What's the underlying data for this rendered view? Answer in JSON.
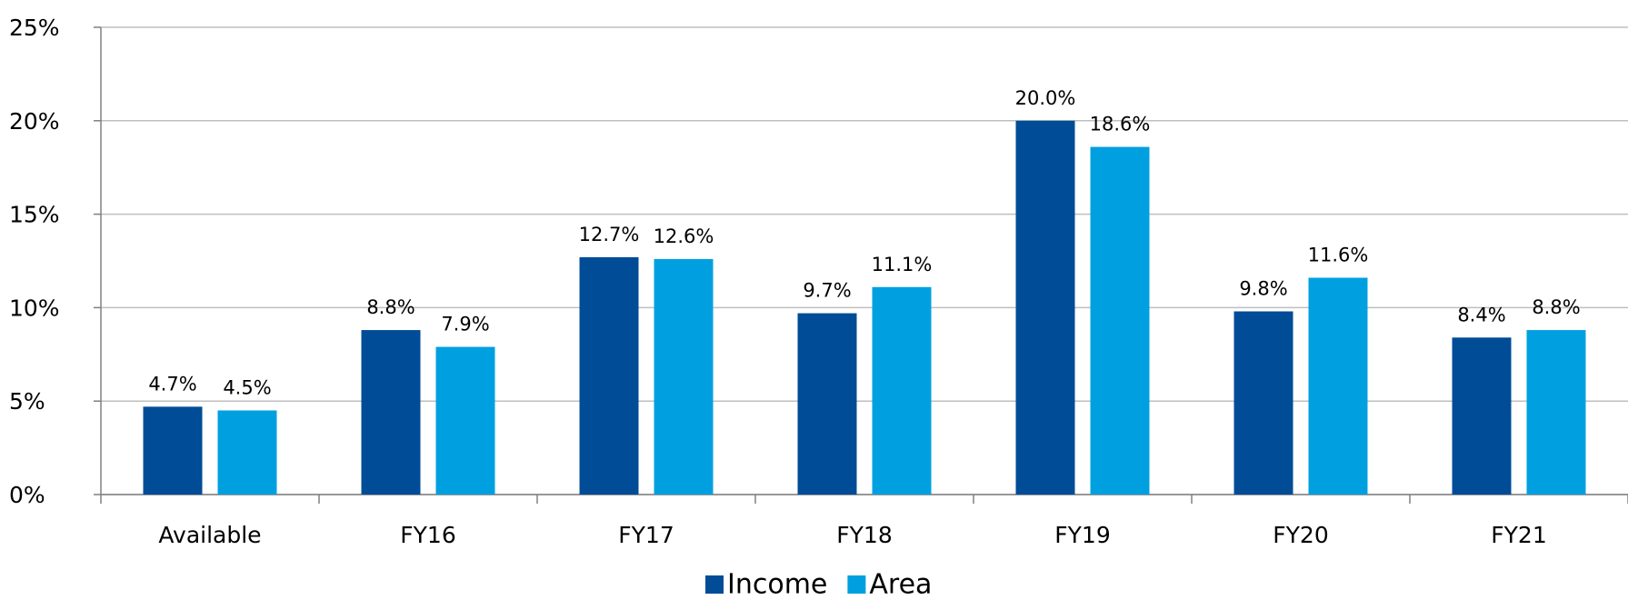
{
  "chart_data": {
    "type": "bar",
    "categories": [
      "Available",
      "FY16",
      "FY17",
      "FY18",
      "FY19",
      "FY20",
      "FY21"
    ],
    "series": [
      {
        "name": "Income",
        "color": "#004c97",
        "values": [
          4.7,
          8.8,
          12.7,
          9.7,
          20.0,
          9.8,
          8.4
        ],
        "value_labels": [
          "4.7%",
          "8.8%",
          "12.7%",
          "9.7%",
          "20.0%",
          "9.8%",
          "8.4%"
        ]
      },
      {
        "name": "Area",
        "color": "#00a0e0",
        "values": [
          4.5,
          7.9,
          12.6,
          11.1,
          18.6,
          11.6,
          8.8
        ],
        "value_labels": [
          "4.5%",
          "7.9%",
          "12.6%",
          "11.1%",
          "18.6%",
          "11.6%",
          "8.8%"
        ]
      }
    ],
    "ylim": [
      0,
      25
    ],
    "yticks": [
      {
        "value": 0,
        "label": "0%"
      },
      {
        "value": 5,
        "label": "5%"
      },
      {
        "value": 10,
        "label": "10%"
      },
      {
        "value": 15,
        "label": "15%"
      },
      {
        "value": 20,
        "label": "20%"
      },
      {
        "value": 25,
        "label": "25%"
      }
    ],
    "grid": true,
    "legend": "bottom"
  }
}
